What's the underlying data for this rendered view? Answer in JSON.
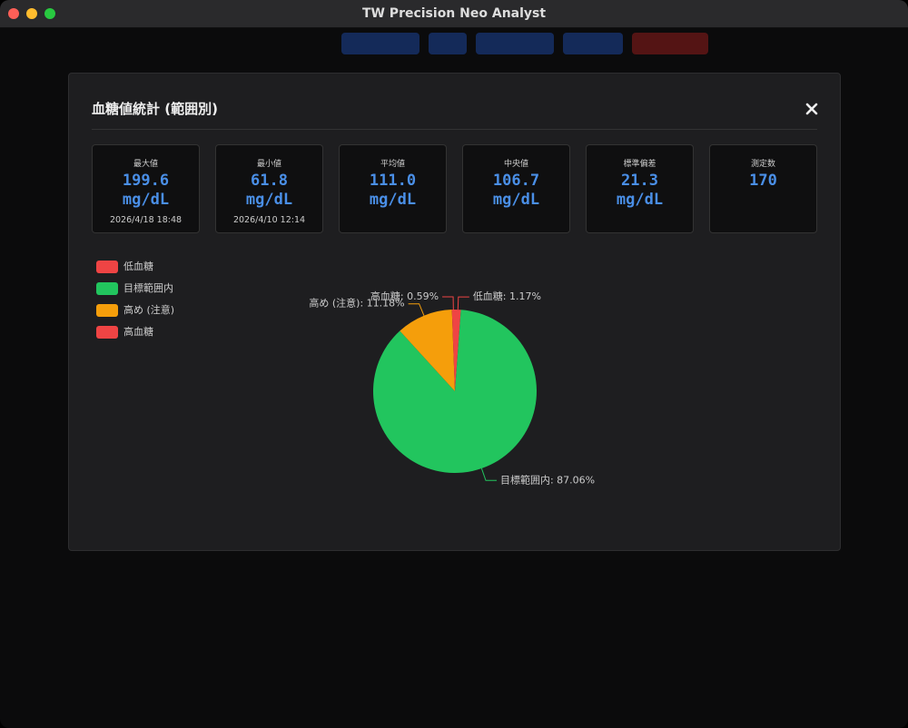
{
  "window": {
    "title": "TW Precision Neo Analyst"
  },
  "modal": {
    "title": "血糖値統計 (範囲別)",
    "stats": [
      {
        "label": "最大値",
        "value": "199.6",
        "unit": "mg/dL",
        "note": "2026/4/18 18:48"
      },
      {
        "label": "最小値",
        "value": "61.8",
        "unit": "mg/dL",
        "note": "2026/4/10 12:14"
      },
      {
        "label": "平均値",
        "value": "111.0",
        "unit": "mg/dL"
      },
      {
        "label": "中央値",
        "value": "106.7",
        "unit": "mg/dL"
      },
      {
        "label": "標準偏差",
        "value": "21.3",
        "unit": "mg/dL"
      },
      {
        "label": "測定数",
        "value": "170"
      }
    ]
  },
  "chart_data": {
    "type": "pie",
    "categories": [
      "低血糖",
      "目標範囲内",
      "高め (注意)",
      "高血糖"
    ],
    "values": [
      1.17,
      87.06,
      11.18,
      0.59
    ],
    "value_labels": [
      "低血糖: 1.17%",
      "目標範囲内: 87.06%",
      "高め (注意): 11.18%",
      "高血糖: 0.59%"
    ],
    "colors": [
      "#ef4444",
      "#22c55e",
      "#f59e0b",
      "#ef4444"
    ],
    "legend": "top-left"
  }
}
